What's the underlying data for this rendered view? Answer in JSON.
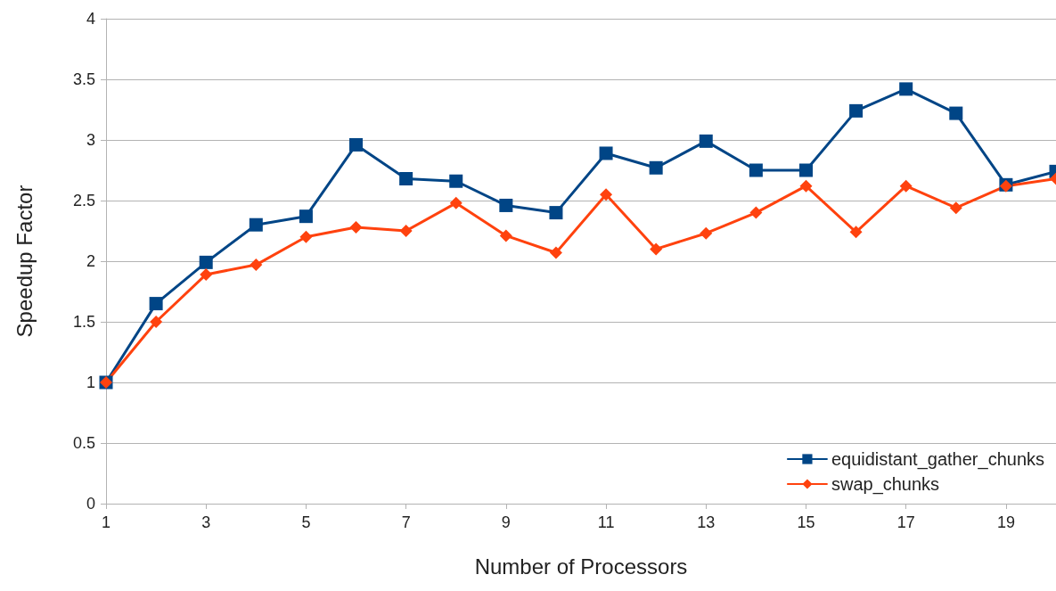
{
  "chart_data": {
    "type": "line",
    "xlabel": "Number of Processors",
    "ylabel": "Speedup Factor",
    "x": [
      1,
      2,
      3,
      4,
      5,
      6,
      7,
      8,
      9,
      10,
      11,
      12,
      13,
      14,
      15,
      16,
      17,
      18,
      19,
      20
    ],
    "series": [
      {
        "name": "equidistant_gather_chunks",
        "color": "#004586",
        "marker": "square",
        "values": [
          1.0,
          1.65,
          1.99,
          2.3,
          2.37,
          2.96,
          2.68,
          2.66,
          2.46,
          2.4,
          2.89,
          2.77,
          2.99,
          2.75,
          2.75,
          3.24,
          3.42,
          3.22,
          2.63,
          2.74
        ]
      },
      {
        "name": "swap_chunks",
        "color": "#ff420e",
        "marker": "diamond",
        "values": [
          1.0,
          1.5,
          1.89,
          1.97,
          2.2,
          2.28,
          2.25,
          2.48,
          2.21,
          2.07,
          2.55,
          2.1,
          2.23,
          2.4,
          2.62,
          2.24,
          2.62,
          2.44,
          2.62,
          2.68
        ]
      }
    ],
    "xlim": [
      1,
      20
    ],
    "xticks": [
      1,
      3,
      5,
      7,
      9,
      11,
      13,
      15,
      17,
      19
    ],
    "ylim": [
      0,
      4
    ],
    "yticks": [
      0,
      0.5,
      1,
      1.5,
      2,
      2.5,
      3,
      3.5,
      4
    ],
    "grid": "y",
    "legend": "bottom right",
    "line_style": "solid"
  }
}
